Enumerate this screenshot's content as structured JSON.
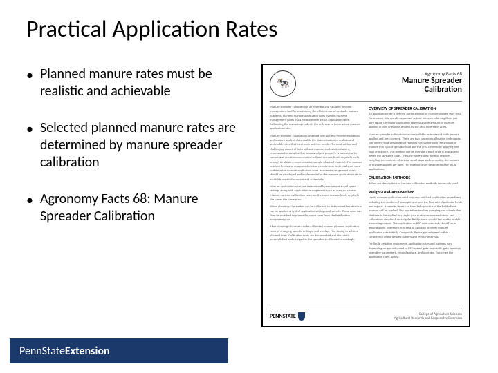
{
  "slide": {
    "title": "Practical Application Rates",
    "bullets": [
      "Planned manure rates must be realistic and achievable",
      "Selected planned manure rates are determined by manure spreader calibration",
      "Agronomy Facts 68: Manure Spreader Calibration"
    ]
  },
  "doc_preview": {
    "series": "Agronomy Facts 68",
    "title_line1": "Manure Spreader",
    "title_line2": "Calibration",
    "logo_glyph": "🐄",
    "subhead_overview": "OVERVIEW OF SPREADER CALIBRATION",
    "subhead_methods": "CALIBRATION METHODS",
    "subhead_weight": "Weight-Load-Area Method",
    "footer_brand": "PENNSTATE",
    "footer_dept_line1": "College of Agriculture Sciences",
    "footer_dept_line2": "Agricultural Research and Cooperative Extension"
  },
  "footer": {
    "brand_part1": "PennState",
    "brand_part2": "Extension"
  },
  "colors": {
    "brand_blue": "#1b3a6b",
    "text": "#000000",
    "doc_text": "#555555",
    "background": "#ffffff"
  },
  "typography": {
    "title_fontsize": 34,
    "bullet_fontsize": 20,
    "doc_title_fontsize": 12
  },
  "filler": {
    "p1": "Manure spreader calibration is an essential and valuable nutrient management tool for maximizing the efficient use of available manure nutrients. Planned manure application rates listed in nutrient management plans must estimate with actual application rates. Calibrating the manure spreader is the only way to know actual manure application rates.",
    "p2": "Manure spreader calibration combined with soil test recommendations and manure analysis data enable the determination of realistic and achievable rates that meet crop nutrient needs. The most critical and challenging aspect of both soil and manure analysis is obtaining representative samples that when analyzed properly. It is essential to sample and retest recommended soil and manure levels regularly early enough to obtain a representative sample of actual material. The manure nutrient levels and equipment measurements from test results are used to determine manure application rates. Nutrient management plans should be developed and implemented as the manure application rate to establish practical accurate and achievable.",
    "p3": "Manure application rates are determined by equipment travel speed settings along with application management such as overlap pattern. Manure nutrient calibration rates are the same manure levels regularly the same, the same plan.",
    "p4": "When planning—Spreaders can be calibrated to determine the rates that can be applied at typical application settings and speeds. These rates can then be matched to planned manure rates from the fertilization equipment plan.",
    "p5": "After planning—Manure can be calibrated to meet planned application rates by changing speeds, settings, and overlap. Fine tuning to achieve planned rates. Calibration rates are documented and the rate is accomplished and changed in the spreader a calibrated accordingly.",
    "r1": "An application rate is defined as the amount of manure applied over area. For manure, it is usually expressed as tons per acre solid or gallons per acre liquid. Generally application rate equals the amount of manure applied in tons or gallons divided by the area covered in acres.",
    "r2": "Manure spreader calibration requires reliable estimates of both manure applied and area covered. There are two common calibration techniques. The weight-load-area method requires measuring both the amount of manure in a typical spreader load and the area covered by applying one load of manure. This method can be useful if a truck scale is available to weigh the spreader loads. The tarp-weight-area method requires weighing the contents of several small tarps and computing the amount of manure applied per acre. This method is the best method for liquid applications.",
    "r3": "Below are descriptions of the two calibration methods commonly used.",
    "r4": "Liquid manure applicators used to pump and haul application procedures including the number of loads per acre and the flow rate. Applicator fields and regular. It transfer times can then help practice of the field where manure will be applied. The procedure involves pumping and criteria that the time to be applied in a single pass makes recommendations and calibrations simpler. A rectangular field pattern should be used to enable measuring output. The application or PTO rate constants should be in groundspeed. Therefore, it is best to calibrate or verify manure application rate initially. Compactly. Revise groundspeed within a consistency of the desired pattern and regular intervals.",
    "r5": "For liquid agitation equipment, application rates and patterns vary depending on ground speed or PTO speed, gate box width, gate openings, operating parameters, ground surface, and operator. To change the application rates, adjust."
  }
}
